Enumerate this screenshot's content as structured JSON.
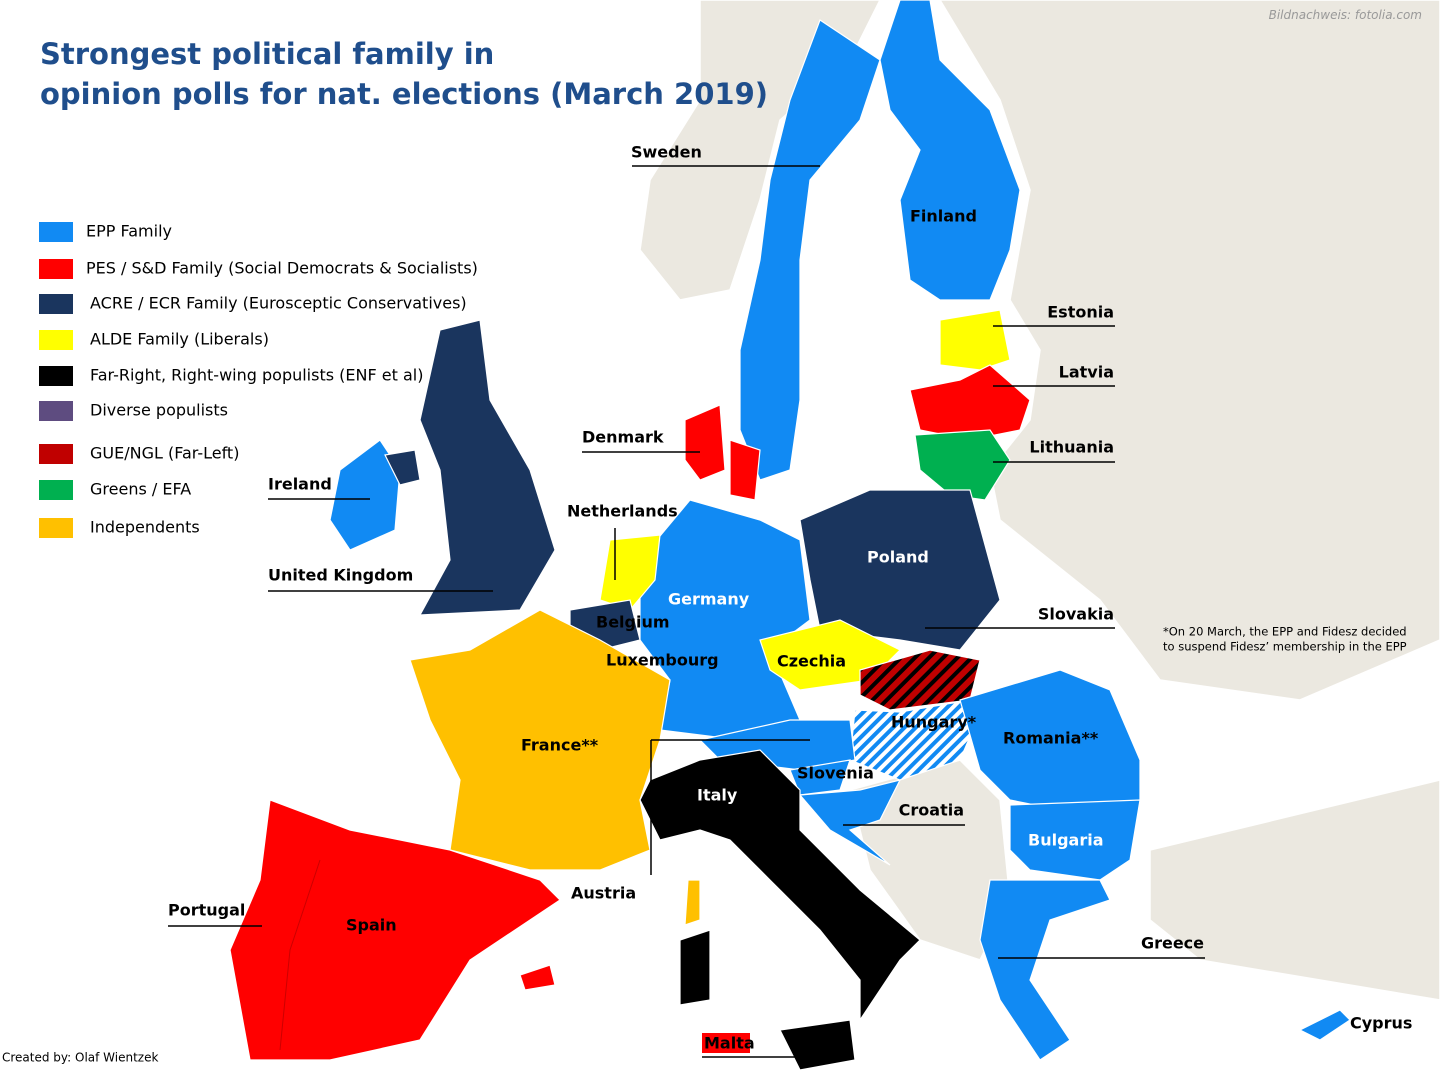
{
  "title": [
    "Strongest political family in",
    "opinion polls for nat. elections (March 2019)"
  ],
  "image_credit": "Bildnachweis: fotolia.com",
  "legend": [
    {
      "label": "EPP Family",
      "color": "#118af3"
    },
    {
      "label": "PES / S&D Family (Social Democrats & Socialists)",
      "color": "#ff0000"
    },
    {
      "label": "ACRE / ECR Family (Eurosceptic Conservatives)",
      "color": "#1a355e"
    },
    {
      "label": "ALDE Family (Liberals)",
      "color": "#ffff00"
    },
    {
      "label": "Far-Right, Right-wing populists (ENF et al)",
      "color": "#000000"
    },
    {
      "label": "Diverse populists",
      "color": "#5e4c80"
    },
    {
      "label": "GUE/NGL (Far-Left)",
      "color": "#c00000"
    },
    {
      "label": "Greens / EFA",
      "color": "#00b050"
    },
    {
      "label": "Independents",
      "color": "#ffc000"
    }
  ],
  "countries": [
    "Sweden",
    "Finland",
    "Estonia",
    "Latvia",
    "Lithuania",
    "Denmark",
    "Ireland",
    "Netherlands",
    "United Kingdom",
    "Germany",
    "Poland",
    "Belgium",
    "Luxembourg",
    "Czechia",
    "Slovakia",
    "Hungary*",
    "Romania**",
    "France**",
    "Slovenia",
    "Italy",
    "Croatia",
    "Bulgaria",
    "Austria",
    "Portugal",
    "Spain",
    "Greece",
    "Cyprus",
    "Malta"
  ],
  "footnote": [
    "*On 20  March, the EPP and Fidesz decided",
    "to suspend Fidesz’ membership in the EPP"
  ],
  "credit": "Created by: Olaf Wientzek"
}
